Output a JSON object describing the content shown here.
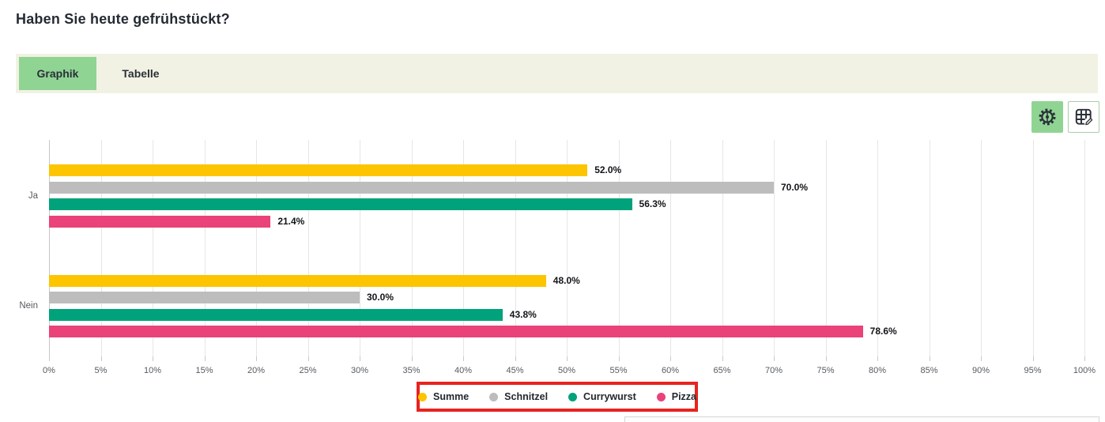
{
  "page": {
    "title": "Haben Sie heute gefrühstückt?"
  },
  "tabs": [
    {
      "label": "Graphik",
      "active": true
    },
    {
      "label": "Tabelle",
      "active": false
    }
  ],
  "toolbar": {
    "buttons": [
      {
        "name": "chart-settings",
        "icon": "gear-icon",
        "active": true
      },
      {
        "name": "table-edit",
        "icon": "table-edit-icon",
        "active": false
      }
    ]
  },
  "chart_data": {
    "type": "bar",
    "orientation": "horizontal",
    "title": "",
    "categories": [
      "Ja",
      "Nein"
    ],
    "series": [
      {
        "name": "Summe",
        "color": "#fcc500",
        "values": [
          52.0,
          48.0
        ],
        "value_labels": [
          "52.0%",
          "48.0%"
        ]
      },
      {
        "name": "Schnitzel",
        "color": "#bdbdbd",
        "values": [
          70.0,
          30.0
        ],
        "value_labels": [
          "70.0%",
          "30.0%"
        ]
      },
      {
        "name": "Currywurst",
        "color": "#00a27b",
        "values": [
          56.3,
          43.8
        ],
        "value_labels": [
          "56.3%",
          "43.8%"
        ]
      },
      {
        "name": "Pizza",
        "color": "#e94379",
        "values": [
          21.4,
          78.6
        ],
        "value_labels": [
          "21.4%",
          "78.6%"
        ]
      }
    ],
    "x_axis": {
      "min": 0,
      "max": 100,
      "step": 5,
      "unit": "%",
      "tick_labels": [
        "0%",
        "5%",
        "10%",
        "15%",
        "20%",
        "25%",
        "30%",
        "35%",
        "40%",
        "45%",
        "50%",
        "55%",
        "60%",
        "65%",
        "70%",
        "75%",
        "80%",
        "85%",
        "90%",
        "95%",
        "100%"
      ]
    },
    "grid": true,
    "legend": {
      "position": "bottom",
      "items": [
        "Summe",
        "Schnitzel",
        "Currywurst",
        "Pizza"
      ],
      "highlighted": true,
      "highlight_box_color": "#e8231f"
    }
  },
  "colors": {
    "accent_green": "#90d494",
    "tabbar_bg": "#f1f2e3",
    "bar_yellow": "#fcc500",
    "bar_gray": "#bdbdbd",
    "bar_green": "#00a27b",
    "bar_pink": "#e94379",
    "legend_highlight": "#e8231f",
    "title_text": "#252b33"
  }
}
